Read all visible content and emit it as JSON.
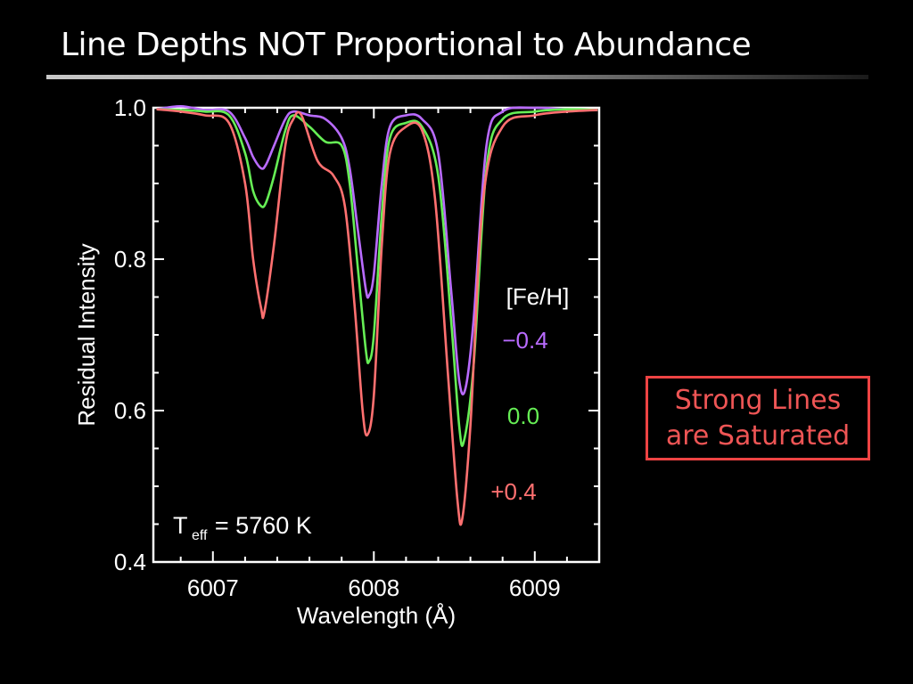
{
  "slide": {
    "title": "Line Depths NOT Proportional to Abundance"
  },
  "callout": {
    "line1": "Strong Lines",
    "line2": "are Saturated",
    "color": "#ee5555"
  },
  "chart_data": {
    "type": "line",
    "xlabel": "Wavelength (Å)",
    "ylabel": "Residual Intensity",
    "xlim": [
      6006.63,
      6009.4
    ],
    "ylim": [
      0.4,
      1.0
    ],
    "xticks": [
      "6007",
      "6008",
      "6009"
    ],
    "yticks": [
      "0.4",
      "0.6",
      "0.8",
      "1.0"
    ],
    "grid": false,
    "legend": {
      "title": "[Fe/H]",
      "placement": "right-inside"
    },
    "annotation": {
      "prefix": "T",
      "subscript": "eff",
      "text": "= 5760 K"
    },
    "series": [
      {
        "name": "−0.4",
        "color": "#b96bff",
        "x": [
          6006.65,
          6006.8,
          6006.95,
          6007.1,
          6007.2,
          6007.25,
          6007.3,
          6007.33,
          6007.38,
          6007.45,
          6007.5,
          6007.6,
          6007.7,
          6007.8,
          6007.85,
          6007.9,
          6007.95,
          6007.97,
          6008.0,
          6008.05,
          6008.1,
          6008.2,
          6008.3,
          6008.4,
          6008.48,
          6008.53,
          6008.57,
          6008.62,
          6008.7,
          6008.8,
          6009.0,
          6009.2,
          6009.39
        ],
        "y": [
          0.998,
          1.002,
          0.997,
          0.995,
          0.96,
          0.935,
          0.92,
          0.925,
          0.95,
          0.985,
          0.995,
          0.99,
          0.985,
          0.96,
          0.92,
          0.84,
          0.76,
          0.752,
          0.78,
          0.9,
          0.975,
          0.99,
          0.985,
          0.94,
          0.76,
          0.64,
          0.63,
          0.72,
          0.95,
          0.995,
          1.0,
          0.998,
          0.997
        ]
      },
      {
        "name": "0.0",
        "color": "#66ee55",
        "x": [
          6006.65,
          6006.8,
          6006.95,
          6007.1,
          6007.2,
          6007.25,
          6007.3,
          6007.33,
          6007.38,
          6007.45,
          6007.5,
          6007.6,
          6007.7,
          6007.8,
          6007.85,
          6007.9,
          6007.95,
          6007.97,
          6008.0,
          6008.05,
          6008.1,
          6008.2,
          6008.3,
          6008.4,
          6008.48,
          6008.53,
          6008.56,
          6008.62,
          6008.7,
          6008.8,
          6009.0,
          6009.2,
          6009.39
        ],
        "y": [
          0.998,
          0.997,
          0.995,
          0.99,
          0.94,
          0.89,
          0.87,
          0.875,
          0.91,
          0.97,
          0.99,
          0.975,
          0.955,
          0.95,
          0.9,
          0.79,
          0.68,
          0.665,
          0.7,
          0.86,
          0.96,
          0.98,
          0.975,
          0.91,
          0.72,
          0.58,
          0.56,
          0.66,
          0.92,
          0.985,
          0.995,
          0.998,
          0.997
        ]
      },
      {
        "name": "+0.4",
        "color": "#ff7070",
        "x": [
          6006.65,
          6006.8,
          6006.95,
          6007.1,
          6007.2,
          6007.25,
          6007.3,
          6007.32,
          6007.38,
          6007.45,
          6007.5,
          6007.55,
          6007.65,
          6007.75,
          6007.82,
          6007.88,
          6007.93,
          6007.96,
          6008.0,
          6008.05,
          6008.1,
          6008.2,
          6008.3,
          6008.38,
          6008.46,
          6008.52,
          6008.55,
          6008.6,
          6008.68,
          6008.8,
          6009.0,
          6009.2,
          6009.39
        ],
        "y": [
          0.998,
          0.995,
          0.99,
          0.98,
          0.9,
          0.8,
          0.735,
          0.73,
          0.82,
          0.95,
          0.985,
          0.99,
          0.93,
          0.91,
          0.87,
          0.74,
          0.6,
          0.568,
          0.62,
          0.82,
          0.94,
          0.975,
          0.97,
          0.88,
          0.65,
          0.48,
          0.458,
          0.58,
          0.88,
          0.975,
          0.99,
          0.995,
          0.997
        ]
      }
    ]
  }
}
